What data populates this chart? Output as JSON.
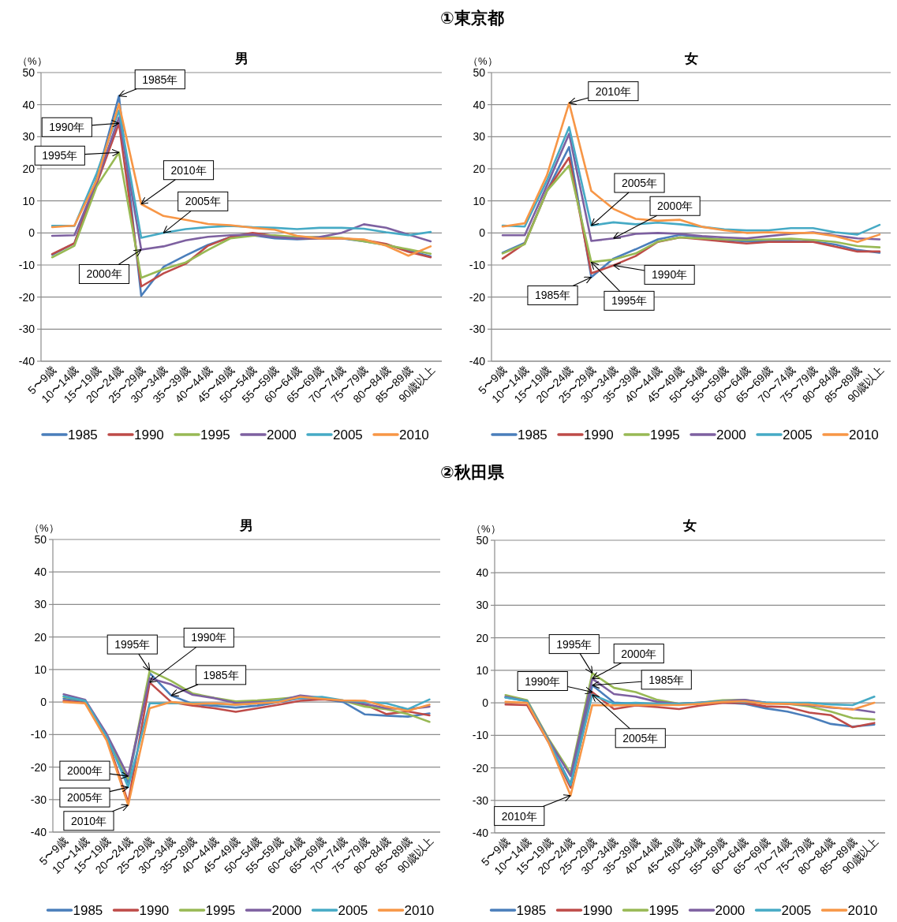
{
  "chart_data": [
    {
      "type": "line",
      "title": "男",
      "ylabel": "（%）",
      "ylim": [
        -40,
        50
      ],
      "yticks": [
        -40,
        -30,
        -20,
        -10,
        0,
        10,
        20,
        30,
        40,
        50
      ],
      "grid": "y",
      "legend": "bottom",
      "categories": [
        "5〜9歳",
        "10〜14歳",
        "15〜19歳",
        "20〜24歳",
        "25〜29歳",
        "30〜34歳",
        "35〜39歳",
        "40〜44歳",
        "45〜49歳",
        "50〜54歳",
        "55〜59歳",
        "60〜64歳",
        "65〜69歳",
        "70〜74歳",
        "75〜79歳",
        "80〜84歳",
        "85〜89歳",
        "90歳以上"
      ],
      "series": [
        {
          "name": "1985",
          "color": "#4a7ebb",
          "values": [
            -6.8,
            -3.2,
            17,
            42.7,
            -19.6,
            -10.6,
            -7,
            -3.7,
            -1.3,
            -0.7,
            -1.7,
            -2,
            -1.7,
            -1.7,
            -2.6,
            -3.7,
            -5.5,
            -7.3
          ]
        },
        {
          "name": "1990",
          "color": "#be4b48",
          "values": [
            -6.6,
            -3.2,
            15.3,
            34.2,
            -16.7,
            -12.6,
            -9.6,
            -4,
            -1.3,
            0,
            -0.9,
            -1.7,
            -1.7,
            -1.7,
            -2.2,
            -3.4,
            -5.9,
            -7.6
          ]
        },
        {
          "name": "1995",
          "color": "#98b954",
          "values": [
            -7.6,
            -4,
            14.5,
            25.1,
            -14,
            -11.3,
            -9.2,
            -5.3,
            -1.7,
            -0.9,
            -0.7,
            -1.3,
            -1.3,
            -1.5,
            -2.6,
            -3.8,
            -5.1,
            -6.5
          ]
        },
        {
          "name": "2000",
          "color": "#7d60a0",
          "values": [
            -0.9,
            -0.7,
            16,
            36,
            -5.2,
            -4.2,
            -2.3,
            -1.2,
            -0.7,
            -0.5,
            -1.3,
            -1.7,
            -1.3,
            0,
            2.7,
            1.6,
            -0.5,
            -2.6
          ]
        },
        {
          "name": "2005",
          "color": "#46aac5",
          "values": [
            2.2,
            2.2,
            18.6,
            38.2,
            -1.5,
            0,
            1.2,
            1.8,
            2.2,
            1.8,
            1.6,
            1.2,
            1.6,
            1.6,
            1.3,
            0.2,
            -0.7,
            0.3
          ]
        },
        {
          "name": "2010",
          "color": "#f79646",
          "values": [
            1.8,
            2.3,
            16.5,
            40.2,
            9,
            5.3,
            4.1,
            2.8,
            2.4,
            1.6,
            1,
            -0.9,
            -1.7,
            -1.7,
            -2,
            -4,
            -7.1,
            -4.2
          ]
        }
      ],
      "annotations": [
        "①東京都",
        {
          "text": "1985年",
          "x": "20〜24歳",
          "y": 42.7
        },
        {
          "text": "1990年",
          "x": "20〜24歳",
          "y": 34.2
        },
        {
          "text": "1995年",
          "x": "20〜24歳",
          "y": 25.1
        },
        {
          "text": "2010年",
          "x": "25〜29歳",
          "y": 9
        },
        {
          "text": "2005年",
          "x": "30〜34歳",
          "y": 0
        },
        {
          "text": "2000年",
          "x": "25〜29歳",
          "y": -5.2
        }
      ]
    },
    {
      "type": "line",
      "title": "女",
      "ylabel": "（%）",
      "ylim": [
        -40,
        50
      ],
      "yticks": [
        -40,
        -30,
        -20,
        -10,
        0,
        10,
        20,
        30,
        40,
        50
      ],
      "grid": "y",
      "legend": "bottom",
      "categories": [
        "5〜9歳",
        "10〜14歳",
        "15〜19歳",
        "20〜24歳",
        "25〜29歳",
        "30〜34歳",
        "35〜39歳",
        "40〜44歳",
        "45〜49歳",
        "50〜54歳",
        "55〜59歳",
        "60〜64歳",
        "65〜69歳",
        "70〜74歳",
        "75〜79歳",
        "80〜84歳",
        "85〜89歳",
        "90歳以上"
      ],
      "series": [
        {
          "name": "1985",
          "color": "#4a7ebb",
          "values": [
            -6.2,
            -3.1,
            13.1,
            26.8,
            -13.8,
            -8,
            -5.1,
            -2,
            -0.6,
            -1.4,
            -2.2,
            -2.7,
            -2.5,
            -2.5,
            -2.7,
            -3.6,
            -5.3,
            -6.2
          ]
        },
        {
          "name": "1990",
          "color": "#be4b48",
          "values": [
            -8,
            -3.3,
            13.1,
            23.5,
            -12.6,
            -10.1,
            -7.2,
            -2.8,
            -1.4,
            -2,
            -2.7,
            -3.3,
            -2.8,
            -2.8,
            -2.8,
            -4.3,
            -5.8,
            -5.8
          ]
        },
        {
          "name": "1995",
          "color": "#98b954",
          "values": [
            -6.4,
            -3.5,
            13.1,
            21,
            -9.1,
            -8.3,
            -6.4,
            -2.7,
            -1.4,
            -1.7,
            -2,
            -2.2,
            -2,
            -1.8,
            -2.2,
            -2.8,
            -4.1,
            -4.5
          ]
        },
        {
          "name": "2000",
          "color": "#7d60a0",
          "values": [
            -0.7,
            -0.7,
            14.8,
            30.9,
            -2.5,
            -1.7,
            -0.3,
            0,
            -0.3,
            -1,
            -1.4,
            -1.7,
            -1,
            -0.3,
            0.2,
            -0.8,
            -1.7,
            -2
          ]
        },
        {
          "name": "2005",
          "color": "#46aac5",
          "values": [
            2.3,
            2,
            16.4,
            33,
            2.3,
            3.3,
            2.7,
            3.2,
            2.7,
            1.9,
            1.1,
            0.8,
            0.8,
            1.5,
            1.5,
            0.2,
            -0.5,
            2.5
          ]
        },
        {
          "name": "2010",
          "color": "#f79646",
          "values": [
            2,
            3,
            18,
            40.5,
            13.1,
            7.5,
            4.4,
            3.8,
            4.1,
            1.9,
            0.8,
            0,
            0.2,
            0,
            0,
            -1,
            -2.8,
            -0.5
          ]
        }
      ],
      "annotations": [
        {
          "text": "2010年",
          "x": "20〜24歳",
          "y": 40.5
        },
        {
          "text": "2005年",
          "x": "25〜29歳",
          "y": 2.3
        },
        {
          "text": "2000年",
          "x": "30〜34歳",
          "y": -1.7
        },
        {
          "text": "1990年",
          "x": "30〜34歳",
          "y": -10.1
        },
        {
          "text": "1985年",
          "x": "25〜29歳",
          "y": -13.8
        },
        {
          "text": "1995年",
          "x": "25〜29歳",
          "y": -9.1
        }
      ]
    },
    {
      "type": "line",
      "title": "男",
      "ylabel": "（%）",
      "ylim": [
        -40,
        50
      ],
      "yticks": [
        -40,
        -30,
        -20,
        -10,
        0,
        10,
        20,
        30,
        40,
        50
      ],
      "grid": "y",
      "legend": "bottom",
      "categories": [
        "5〜9歳",
        "10〜14歳",
        "15〜19歳",
        "20〜24歳",
        "25〜29歳",
        "30〜34歳",
        "35〜39歳",
        "40〜44歳",
        "45〜49歳",
        "50〜54歳",
        "55〜59歳",
        "60〜64歳",
        "65〜69歳",
        "70〜74歳",
        "75〜79歳",
        "80〜84歳",
        "85〜89歳",
        "90歳以上"
      ],
      "series": [
        {
          "name": "1985",
          "color": "#4a7ebb",
          "values": [
            1,
            0.2,
            -10.2,
            -24.8,
            8.9,
            2,
            -0.6,
            -1.2,
            -1.7,
            -1.1,
            0,
            1.2,
            1,
            0,
            -3.8,
            -4.2,
            -4.5,
            -3.5
          ]
        },
        {
          "name": "1990",
          "color": "#be4b48",
          "values": [
            0.4,
            -0.3,
            -11,
            -30.9,
            6,
            0,
            -1.1,
            -1.9,
            -3,
            -1.9,
            -0.8,
            0.4,
            0.8,
            0.4,
            -0.8,
            -3.7,
            -2.9,
            -4.1
          ]
        },
        {
          "name": "1995",
          "color": "#98b954",
          "values": [
            1.6,
            0.4,
            -10.2,
            -23.6,
            9.7,
            6.5,
            2.6,
            1.3,
            0.2,
            0.5,
            1,
            1.6,
            1.2,
            0.4,
            -1.4,
            -2.2,
            -3.7,
            -6.1
          ]
        },
        {
          "name": "2000",
          "color": "#7d60a0",
          "values": [
            2.4,
            0.7,
            -9.8,
            -22.8,
            7.3,
            5.4,
            2.2,
            1.2,
            -0.3,
            0,
            0.4,
            2,
            1.3,
            0.4,
            -0.6,
            -1.9,
            -2.2,
            -1.4
          ]
        },
        {
          "name": "2005",
          "color": "#46aac5",
          "values": [
            1.8,
            0.4,
            -10.6,
            -26.2,
            -0.4,
            -0.4,
            -0.3,
            -0.6,
            -0.8,
            -0.4,
            0.4,
            1.3,
            1.6,
            0.5,
            0,
            -0.4,
            -2.2,
            0.8
          ]
        },
        {
          "name": "2010",
          "color": "#f79646",
          "values": [
            0,
            -0.4,
            -11.8,
            -31.7,
            -1.9,
            0,
            -0.6,
            -0.4,
            -0.8,
            -0.4,
            0,
            1.6,
            1,
            0.5,
            0.4,
            -1.4,
            -2.7,
            -0.8
          ]
        }
      ],
      "annotations": [
        "②秋田県",
        {
          "text": "1995年",
          "x": "25〜29歳",
          "y": 9.7
        },
        {
          "text": "1990年",
          "x": "25〜29歳",
          "y": 6
        },
        {
          "text": "1985年",
          "x": "30〜34歳",
          "y": 2
        },
        {
          "text": "2000年",
          "x": "20〜24歳",
          "y": -22.8
        },
        {
          "text": "2005年",
          "x": "20〜24歳",
          "y": -26.2
        },
        {
          "text": "2010年",
          "x": "20〜24歳",
          "y": -31.7
        }
      ]
    },
    {
      "type": "line",
      "title": "女",
      "ylabel": "（%）",
      "ylim": [
        -40,
        50
      ],
      "yticks": [
        -40,
        -30,
        -20,
        -10,
        0,
        10,
        20,
        30,
        40,
        50
      ],
      "grid": "y",
      "legend": "bottom",
      "categories": [
        "5〜9歳",
        "10〜14歳",
        "15〜19歳",
        "20〜24歳",
        "25〜29歳",
        "30〜34歳",
        "35〜39歳",
        "40〜44歳",
        "45〜49歳",
        "50〜54歳",
        "55〜59歳",
        "60〜64歳",
        "65〜69歳",
        "70〜74歳",
        "75〜79歳",
        "80〜84歳",
        "85〜89歳",
        "90歳以上"
      ],
      "series": [
        {
          "name": "1985",
          "color": "#4a7ebb",
          "values": [
            1.7,
            0.5,
            -12,
            -24.9,
            5.4,
            0.1,
            -0.3,
            -0.7,
            -0.3,
            0,
            0.1,
            -0.3,
            -1.7,
            -2.7,
            -4.3,
            -6.5,
            -7.3,
            -6.7
          ]
        },
        {
          "name": "1990",
          "color": "#be4b48",
          "values": [
            -0.5,
            -0.7,
            -12.4,
            -26.1,
            3.3,
            -1.9,
            -0.8,
            -1.3,
            -1.9,
            -0.8,
            0,
            0,
            -1.1,
            -1.3,
            -3,
            -3.8,
            -7.5,
            -6.2
          ]
        },
        {
          "name": "1995",
          "color": "#98b954",
          "values": [
            2.4,
            0.8,
            -11.2,
            -21.7,
            9.1,
            4.6,
            3.3,
            0.9,
            -0.3,
            0.1,
            0.8,
            0.9,
            0,
            -0.3,
            -1.1,
            -2.7,
            -4.7,
            -5.1
          ]
        },
        {
          "name": "2000",
          "color": "#7d60a0",
          "values": [
            1.9,
            0.5,
            -11.6,
            -22.5,
            7.4,
            2.7,
            1.9,
            0.3,
            -0.3,
            0.1,
            0.5,
            0.9,
            0.1,
            -0.3,
            -0.7,
            -1.5,
            -1.9,
            -2.9
          ]
        },
        {
          "name": "2005",
          "color": "#46aac5",
          "values": [
            1.6,
            0.5,
            -12,
            -25.3,
            2.5,
            -0.3,
            0,
            -0.3,
            -0.3,
            0,
            0.5,
            0.3,
            0.1,
            0,
            0,
            -0.5,
            -0.7,
            1.9
          ]
        },
        {
          "name": "2010",
          "color": "#f79646",
          "values": [
            0.3,
            0,
            -12.4,
            -28.5,
            -0.7,
            -0.8,
            -0.7,
            -0.7,
            -0.7,
            -0.3,
            0.3,
            0.5,
            -0.3,
            -0.3,
            -0.5,
            -1.3,
            -2.1,
            0
          ]
        }
      ],
      "annotations": [
        {
          "text": "1995年",
          "x": "25〜29歳",
          "y": 9.1
        },
        {
          "text": "2000年",
          "x": "25〜29歳",
          "y": 7.4
        },
        {
          "text": "1990年",
          "x": "25〜29歳",
          "y": 3.3
        },
        {
          "text": "1985年",
          "x": "25〜29歳",
          "y": 5.4
        },
        {
          "text": "2005年",
          "x": "25〜29歳",
          "y": 2.5
        },
        {
          "text": "2010年",
          "x": "20〜24歳",
          "y": -28.5
        }
      ]
    }
  ]
}
